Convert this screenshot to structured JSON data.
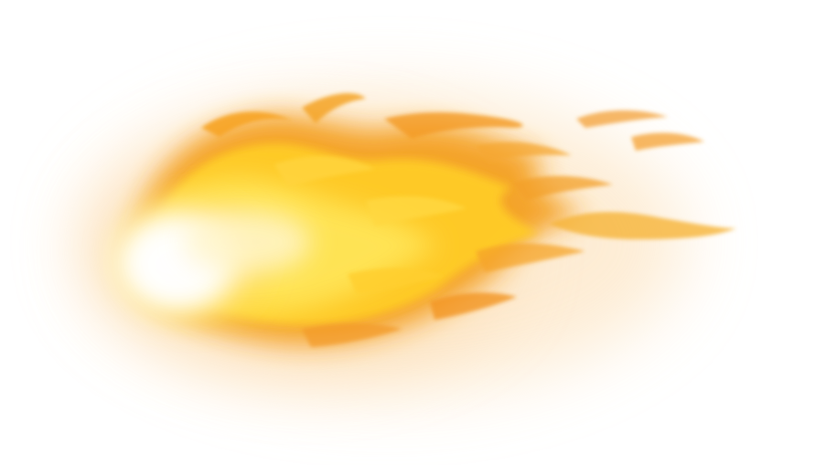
{
  "image": {
    "subject": "fireball",
    "background_color": "#ffffff",
    "colors": {
      "core": "#fffbe6",
      "inner": "#ffe066",
      "mid": "#ffc21a",
      "outer": "#f5a623",
      "edge": "#e8791f",
      "glow": "#fbd9b0"
    }
  }
}
